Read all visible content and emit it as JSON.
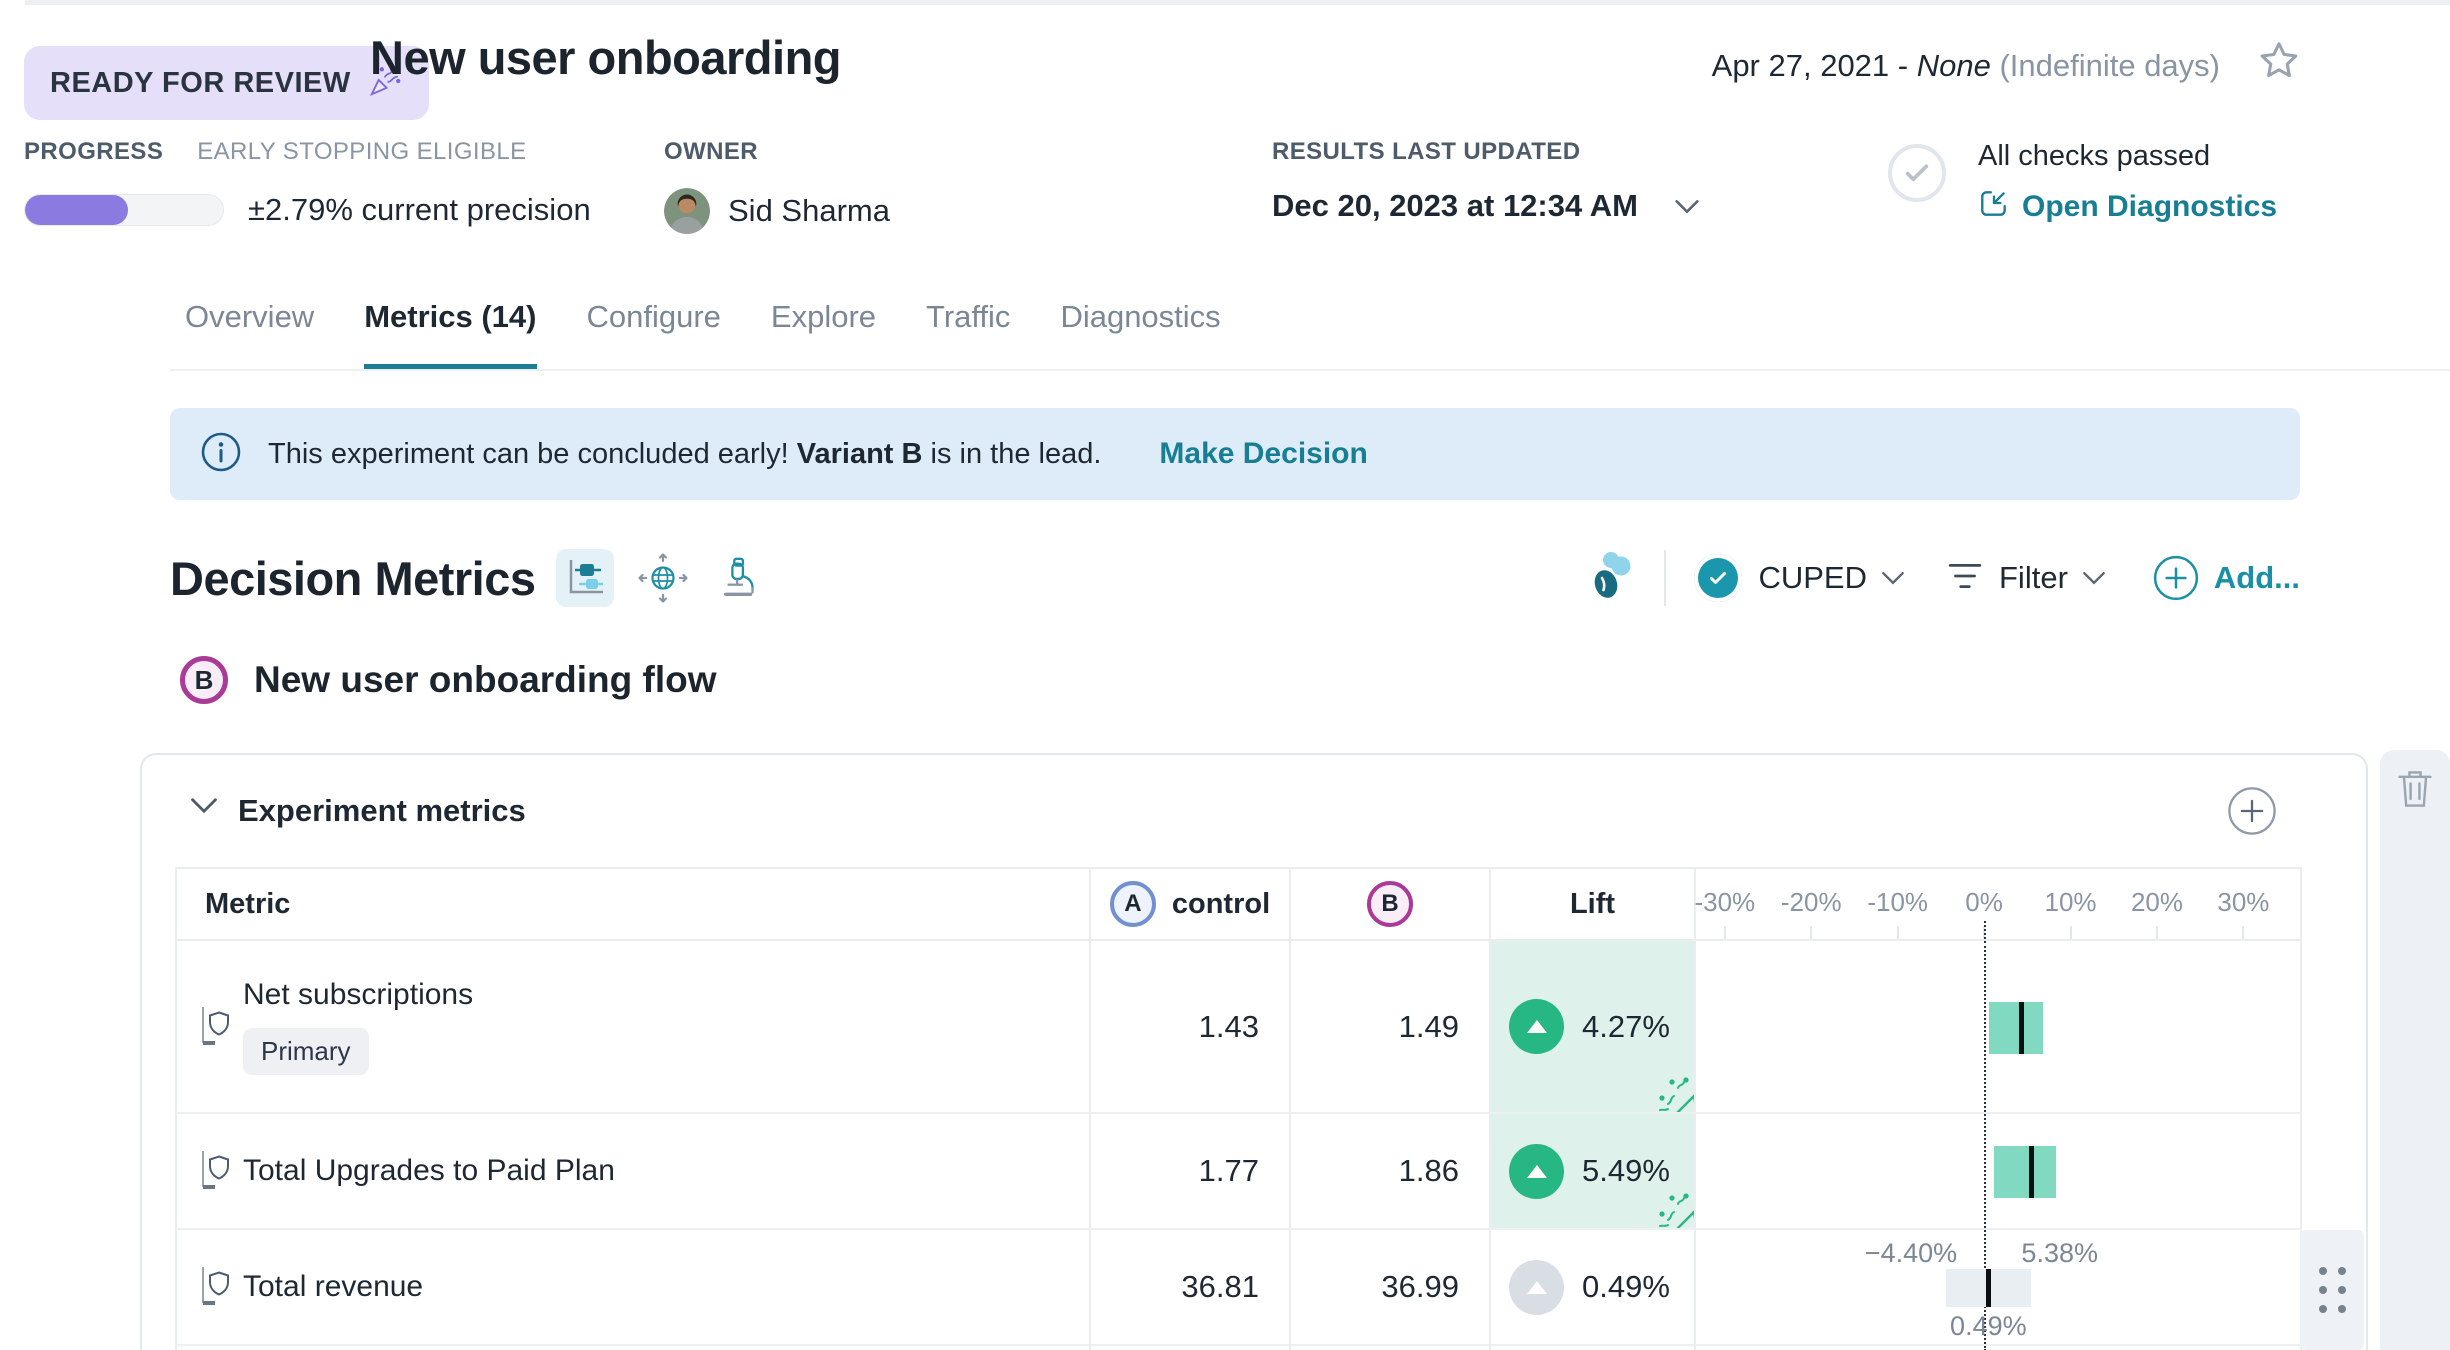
{
  "header": {
    "status_badge": "READY FOR REVIEW",
    "title": "New user onboarding",
    "date_start": "Apr 27, 2021 - ",
    "date_end": "None",
    "date_note": " (Indefinite days)"
  },
  "meta": {
    "progress_label": "PROGRESS",
    "early_stopping": "EARLY STOPPING ELIGIBLE",
    "progress_pct": 52,
    "precision": "±2.79% current precision",
    "owner_label": "OWNER",
    "owner_name": "Sid Sharma",
    "results_label": "RESULTS LAST UPDATED",
    "results_value": "Dec 20, 2023 at 12:34 AM",
    "checks_text": "All checks passed",
    "diagnostics_link": "Open Diagnostics"
  },
  "tabs": [
    {
      "label": "Overview",
      "active": false
    },
    {
      "label": "Metrics (14)",
      "active": true
    },
    {
      "label": "Configure",
      "active": false
    },
    {
      "label": "Explore",
      "active": false
    },
    {
      "label": "Traffic",
      "active": false
    },
    {
      "label": "Diagnostics",
      "active": false
    }
  ],
  "banner": {
    "text_before": "This experiment can be concluded early! ",
    "text_bold": "Variant B",
    "text_after": " is in the lead.",
    "action": "Make Decision"
  },
  "toolbar": {
    "title": "Decision Metrics",
    "cuped_label": "CUPED",
    "filter_label": "Filter",
    "add_label": "Add..."
  },
  "variant": {
    "badge": "B",
    "name": "New user onboarding flow"
  },
  "card": {
    "section_title": "Experiment metrics"
  },
  "table": {
    "columns": {
      "metric": "Metric",
      "control_badge": "A",
      "control_label": "control",
      "variant_badge": "B",
      "lift": "Lift"
    },
    "axis_ticks": [
      "-30%",
      "-20%",
      "-10%",
      "0%",
      "10%",
      "20%",
      "30%"
    ],
    "rows": [
      {
        "name": "Net subscriptions",
        "tag": "Primary",
        "control": "1.43",
        "variant": "1.49",
        "lift": "4.27%",
        "tone": "positive",
        "celebration": true,
        "ci": {
          "low": 0.6,
          "high": 6.8,
          "point": 4.27
        },
        "ci_labels": null
      },
      {
        "name": "Total Upgrades to Paid Plan",
        "tag": null,
        "control": "1.77",
        "variant": "1.86",
        "lift": "5.49%",
        "tone": "positive",
        "celebration": true,
        "ci": {
          "low": 1.2,
          "high": 8.3,
          "point": 5.49
        },
        "ci_labels": null
      },
      {
        "name": "Total revenue",
        "tag": null,
        "control": "36.81",
        "variant": "36.99",
        "lift": "0.49%",
        "tone": "neutral",
        "celebration": false,
        "ci": {
          "low": -4.4,
          "high": 5.38,
          "point": 0.49
        },
        "ci_labels": {
          "low": "−4.40%",
          "high": "5.38%",
          "point": "0.49%"
        }
      }
    ]
  },
  "chart_data": {
    "type": "forest-ci",
    "title": "Lift confidence intervals per metric",
    "x_axis_ticks_pct": [
      -30,
      -20,
      -10,
      0,
      10,
      20,
      30
    ],
    "xlim": [
      -33,
      37
    ],
    "zero_line": true,
    "series": [
      {
        "metric": "Net subscriptions",
        "point_pct": 4.27,
        "ci_low_pct": 0.6,
        "ci_high_pct": 6.8,
        "significant": true
      },
      {
        "metric": "Total Upgrades to Paid Plan",
        "point_pct": 5.49,
        "ci_low_pct": 1.2,
        "ci_high_pct": 8.3,
        "significant": true
      },
      {
        "metric": "Total revenue",
        "point_pct": 0.49,
        "ci_low_pct": -4.4,
        "ci_high_pct": 5.38,
        "significant": false
      }
    ]
  },
  "colors": {
    "accent_teal": "#1b7e95",
    "link_teal": "#177e93",
    "positive_green": "#27b784",
    "positive_bg": "#def1ea",
    "ci_green": "#80d9c0",
    "ci_gray": "#e9eef3",
    "progress_purple": "#8b7ae0",
    "badge_purple_bg": "#e5dff9",
    "variant_b_magenta": "#aa3a97",
    "variant_a_blue": "#7191ce",
    "banner_blue_bg": "#ddecf8"
  }
}
